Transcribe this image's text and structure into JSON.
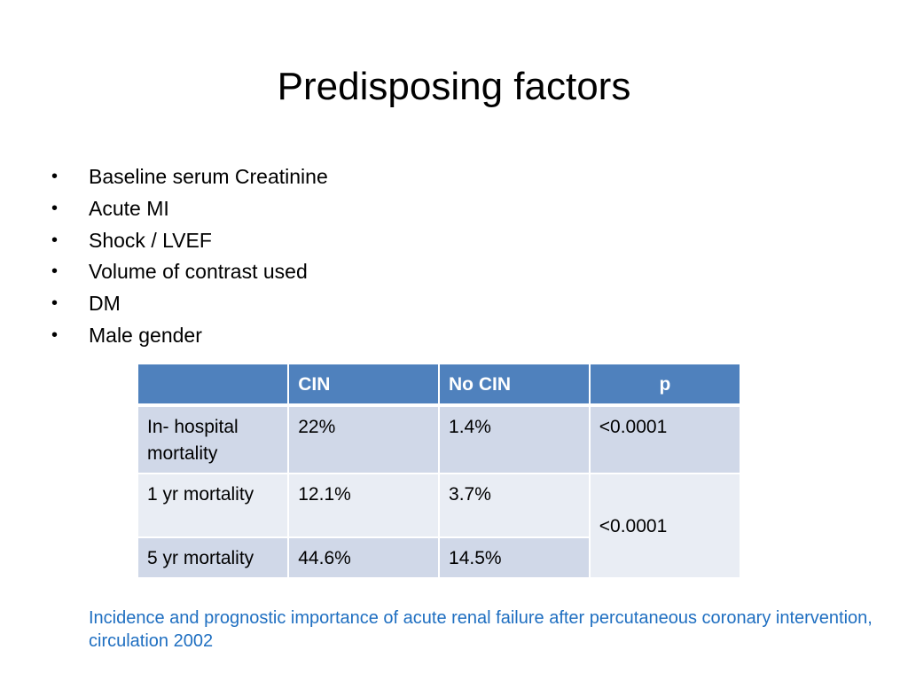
{
  "slide": {
    "title": "Predisposing factors",
    "bullets": [
      "Baseline serum Creatinine",
      "Acute MI",
      "Shock / LVEF",
      "Volume of contrast used",
      "DM",
      "Male gender"
    ],
    "bullet_glyph": "•",
    "table": {
      "headers": [
        "",
        "CIN",
        "No CIN",
        "p"
      ],
      "rows": [
        {
          "label": "In- hospital mortality",
          "cin": "22%",
          "no_cin": "1.4%",
          "p": "<0.0001"
        },
        {
          "label": "1 yr mortality",
          "cin": "12.1%",
          "no_cin": "3.7%",
          "p": "<0.0001"
        },
        {
          "label": "5 yr mortality",
          "cin": "44.6%",
          "no_cin": "14.5%"
        }
      ],
      "header_color": "#4f81bd",
      "row_color_odd": "#d0d8e8",
      "row_color_even": "#e9edf4"
    },
    "citation": "Incidence and prognostic importance of acute renal failure after percutaneous coronary intervention, circulation 2002",
    "citation_color": "#1f6fc1"
  }
}
